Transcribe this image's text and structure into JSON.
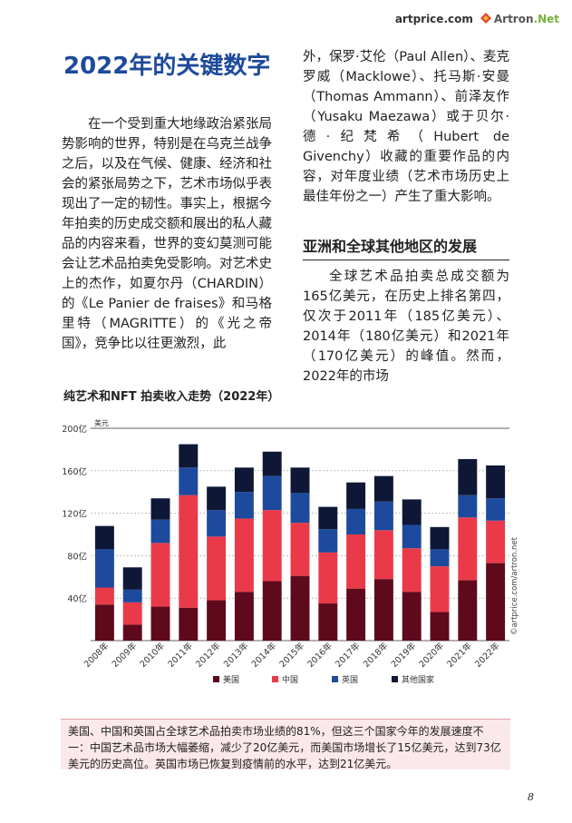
{
  "header": {
    "logo_artprice": "artprice.com",
    "logo_artron": "Artron",
    "logo_artron_suffix": ".Net"
  },
  "title": "2022年的关键数字",
  "left_paragraph": "在一个受到重大地缘政治紧张局势影响的世界，特别是在乌克兰战争之后，以及在气候、健康、经济和社会的紧张局势之下，艺术市场似乎表现出了一定的韧性。事实上，根据今年拍卖的历史成交额和展出的私人藏品的内容来看，世界的变幻莫测可能会让艺术品拍卖免受影响。对艺术史上的杰作，如夏尔丹（CHARDIN）的《Le Panier de fraises》和马格里特（MAGRITTE）的《光之帝国》，竞争比以往更激烈，此",
  "right_paragraph_1": "外，保罗·艾伦（Paul Allen）、麦克罗威（Macklowe）、托马斯·安曼（Thomas Ammann）、前泽友作（Yusaku Maezawa）或于贝尔·德·纪梵希（Hubert de Givenchy）收藏的重要作品的内容，对年度业绩（艺术市场历史上最佳年份之一）产生了重大影响。",
  "subhead": "亚洲和全球其他地区的发展",
  "right_paragraph_2": "全球艺术品拍卖总成交额为165亿美元，在历史上排名第四，仅次于2011年（185亿美元）、2014年（180亿美元）和2021年（170亿美元）的峰值。然而，2022年的市场",
  "chart_title": "纯艺术和NFT 拍卖收入走势（2022年）",
  "chart_data": {
    "type": "bar",
    "stacked": true,
    "unit_label": "美元",
    "categories": [
      "2008年",
      "2009年",
      "2010年",
      "2011年",
      "2012年",
      "2013年",
      "2014年",
      "2015年",
      "2016年",
      "2017年",
      "2018年",
      "2019年",
      "2020年",
      "2021年",
      "2022年"
    ],
    "series": [
      {
        "name": "美国",
        "color": "#5e0a1c",
        "values": [
          34,
          15,
          32,
          31,
          38,
          46,
          56,
          61,
          35,
          49,
          58,
          46,
          27,
          57,
          73
        ]
      },
      {
        "name": "中国",
        "color": "#ea3a4a",
        "values": [
          16,
          21,
          60,
          106,
          60,
          69,
          67,
          50,
          48,
          51,
          46,
          41,
          43,
          59,
          40
        ]
      },
      {
        "name": "英国",
        "color": "#1e4a9e",
        "values": [
          36,
          12,
          22,
          26,
          25,
          25,
          32,
          28,
          22,
          24,
          27,
          22,
          16,
          21,
          21
        ]
      },
      {
        "name": "其他国家",
        "color": "#0e1836",
        "values": [
          22,
          21,
          20,
          22,
          22,
          23,
          23,
          24,
          21,
          25,
          24,
          24,
          21,
          34,
          31
        ]
      }
    ],
    "yticks": [
      "40亿",
      "80亿",
      "120亿",
      "160亿",
      "200亿"
    ],
    "ytick_values": [
      40,
      80,
      120,
      160,
      200
    ],
    "ylim": [
      0,
      200
    ],
    "legend_position": "bottom",
    "watermark": "©artprice.com/artron.net"
  },
  "note": "美国、中国和英国占全球艺术品拍卖市场业绩的81%，但这三个国家今年的发展速度不一：中国艺术品市场大幅萎缩，减少了20亿美元，而美国市场增长了15亿美元，达到73亿美元的历史高位。英国市场已恢复到疫情前的水平，达到21亿美元。",
  "page_number": "8"
}
